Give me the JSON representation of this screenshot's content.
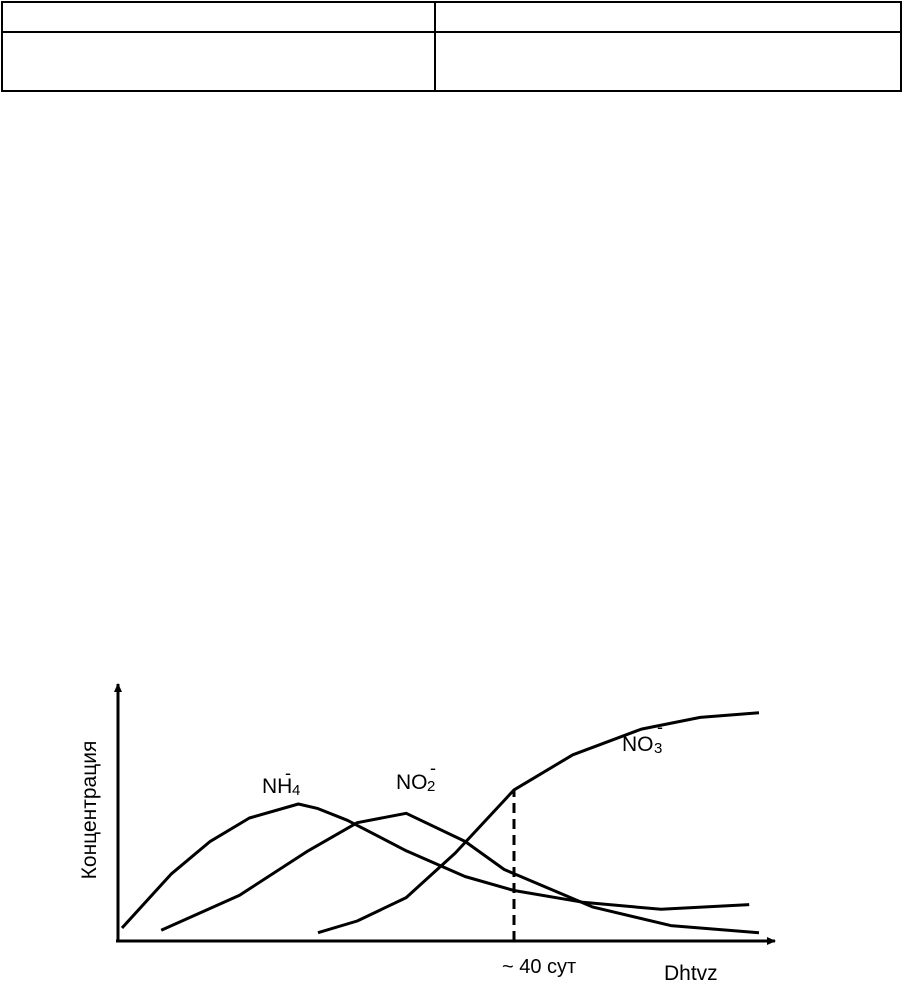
{
  "table": {
    "rows": [
      [
        "",
        ""
      ],
      [
        "",
        ""
      ]
    ]
  },
  "chart_data": {
    "type": "line",
    "ylabel": "Концентрация",
    "xlabel": "Dhtvz",
    "x_marker": {
      "x": 40,
      "label": "~ 40 сут"
    },
    "xlim": [
      0,
      65
    ],
    "ylim": [
      0,
      100
    ],
    "series": [
      {
        "name": "NH4-",
        "label_main": "NH",
        "label_sub": "4",
        "label_sup": "-",
        "x": [
          0,
          5,
          9,
          13,
          18,
          20,
          23,
          29,
          35,
          40,
          47,
          55,
          64
        ],
        "y": [
          3,
          26,
          40,
          50,
          56,
          54,
          49,
          36,
          25,
          19,
          14,
          11,
          13
        ]
      },
      {
        "name": "NO2-",
        "label_main": "NO",
        "label_sub": "2",
        "label_sup": "-",
        "x": [
          4,
          12,
          19,
          24,
          29,
          35,
          39,
          48,
          56,
          65
        ],
        "y": [
          2,
          17,
          36,
          48,
          52,
          40,
          28,
          12,
          4,
          1
        ]
      },
      {
        "name": "NO3-",
        "label_main": "NO",
        "label_sub": "3",
        "label_sup": "-",
        "x": [
          20,
          24,
          29,
          34,
          40,
          46,
          53,
          59,
          65
        ],
        "y": [
          1,
          6,
          16,
          35,
          62,
          77,
          88,
          93,
          95
        ]
      }
    ]
  }
}
